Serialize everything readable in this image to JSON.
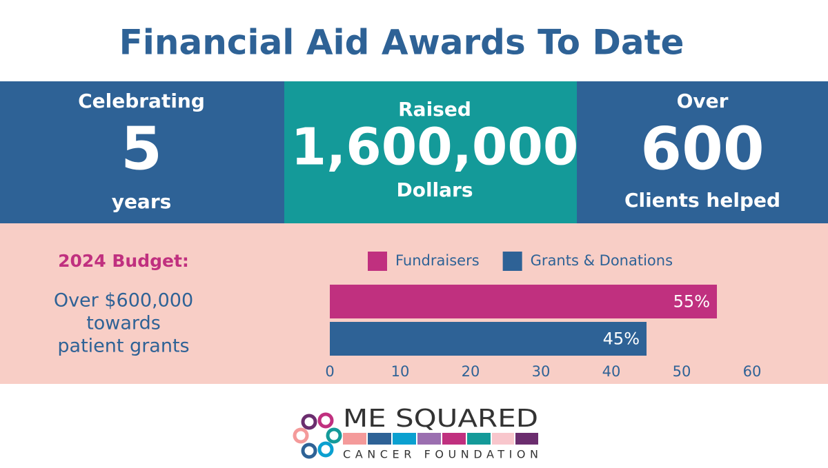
{
  "title": "Financial Aid Awards To Date",
  "stats": [
    {
      "top": "Celebrating",
      "value": "5",
      "bottom": "years"
    },
    {
      "top": "Raised",
      "value": "1,600,000",
      "bottom": "Dollars"
    },
    {
      "top": "Over",
      "value": "600",
      "bottom": "Clients helped"
    }
  ],
  "budget": {
    "heading": "2024 Budget:",
    "lines": [
      "Over $600,000",
      "towards",
      "patient grants"
    ]
  },
  "chart_data": {
    "type": "bar",
    "orientation": "horizontal",
    "series": [
      {
        "name": "Fundraisers",
        "color": "#c0307f",
        "values": [
          55
        ],
        "value_labels": [
          "55%"
        ]
      },
      {
        "name": "Grants & Donations",
        "color": "#2e6296",
        "values": [
          45
        ],
        "value_labels": [
          "45%"
        ]
      }
    ],
    "xlim": [
      0,
      60
    ],
    "xticks": [
      0,
      10,
      20,
      30,
      40,
      50,
      60
    ],
    "legend": "top"
  },
  "logo": {
    "name": "ME SQUARED",
    "subtitle": "CANCER FOUNDATION"
  }
}
